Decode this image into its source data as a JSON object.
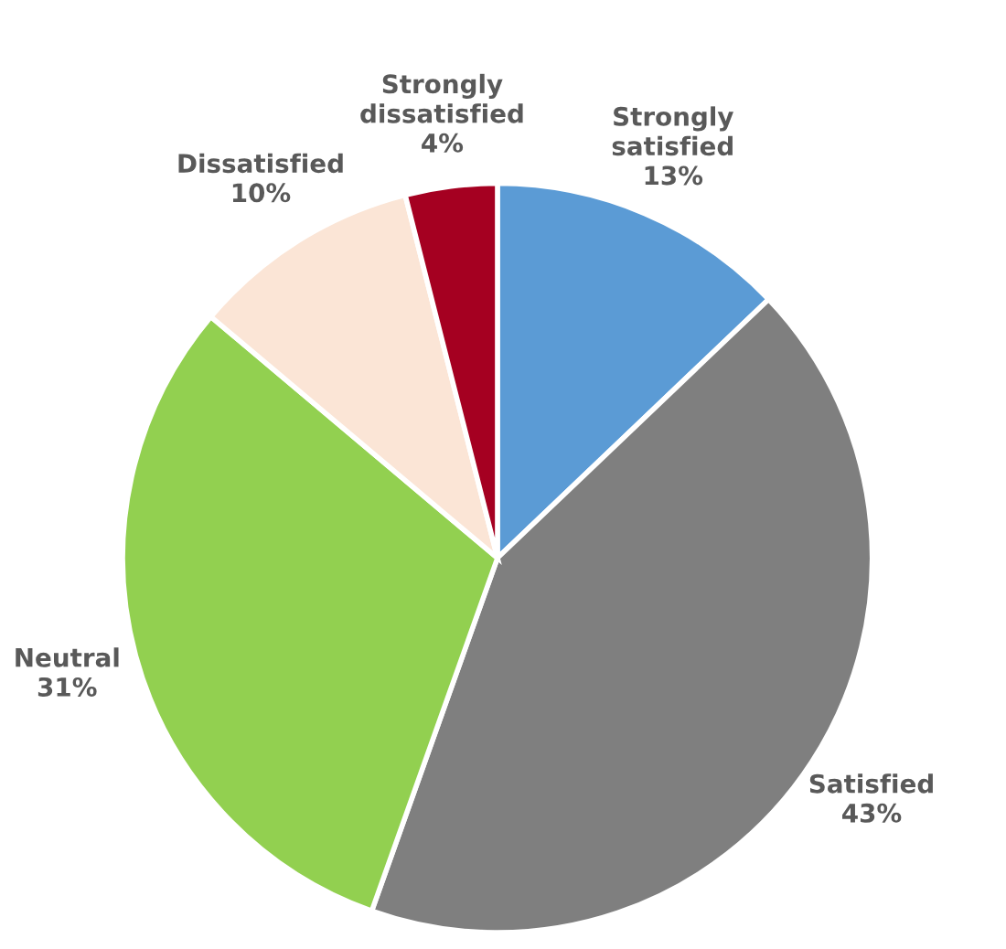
{
  "chart_data": {
    "type": "pie",
    "categories": [
      "Strongly satisfied",
      "Satisfied",
      "Neutral",
      "Dissatisfied",
      "Strongly dissatisfied"
    ],
    "values": [
      13,
      43,
      31,
      10,
      4
    ],
    "colors": [
      "#5b9bd5",
      "#7f7f7f",
      "#92d050",
      "#fbe5d6",
      "#a50021"
    ],
    "value_labels": [
      "13%",
      "43%",
      "31%",
      "10%",
      "4%"
    ]
  }
}
